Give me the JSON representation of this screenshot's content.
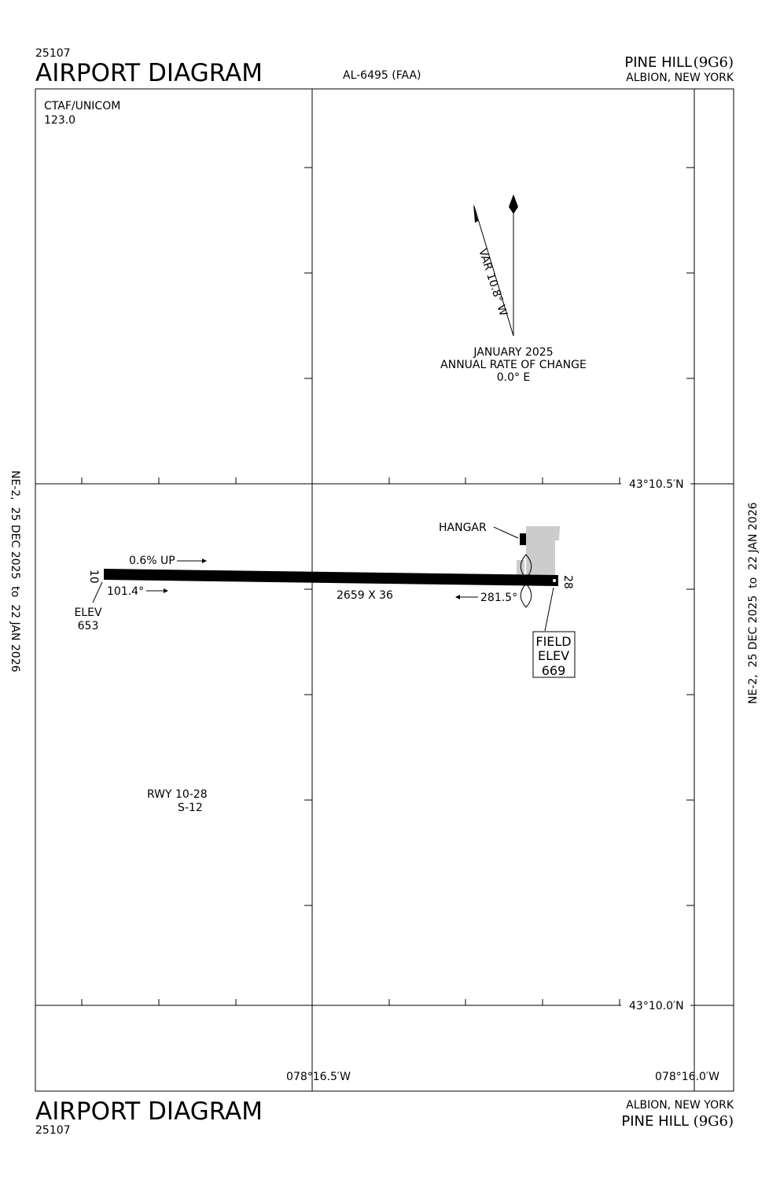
{
  "header": {
    "chart_id": "25107",
    "title": "AIRPORT DIAGRAM",
    "procedure_number": "AL-6495 (FAA)",
    "airport_name": "PINE HILL",
    "airport_id": "(9G6)",
    "location": "ALBION, NEW YORK"
  },
  "footer": {
    "chart_id": "25107",
    "title": "AIRPORT DIAGRAM",
    "airport_name": "PINE HILL",
    "airport_id": "(9G6)",
    "location": "ALBION, NEW YORK"
  },
  "side_margin": {
    "left": "NE-2,  25 DEC 2025  to  22 JAN 2026",
    "right": "NE-2,  25 DEC 2025  to  22 JAN 2026"
  },
  "frequencies": {
    "label": "CTAF/UNICOM",
    "value": "123.0"
  },
  "magnetic": {
    "variation": "VAR 10.8° W",
    "epoch": "JANUARY 2025",
    "rate_label": "ANNUAL RATE OF CHANGE",
    "rate_value": "0.0° E"
  },
  "coordinates": {
    "lat_top": "43°10.5′N",
    "lat_bottom": "43°10.0′N",
    "lon_left": "078°16.5′W",
    "lon_right": "078°16.0′W"
  },
  "runway": {
    "end_10": "10",
    "end_28": "28",
    "gradient": "0.6% UP",
    "heading_10": "101.4°",
    "heading_28": "281.5°",
    "dimensions": "2659 X 36",
    "elev_label": "ELEV",
    "elev_10": "653",
    "designation": "RWY 10-28",
    "strength": "S-12"
  },
  "field_elevation": {
    "line1": "FIELD",
    "line2": "ELEV",
    "value": "669"
  },
  "labels": {
    "hangar": "HANGAR"
  },
  "colors": {
    "ink": "#000000",
    "apron": "#cccccc"
  }
}
